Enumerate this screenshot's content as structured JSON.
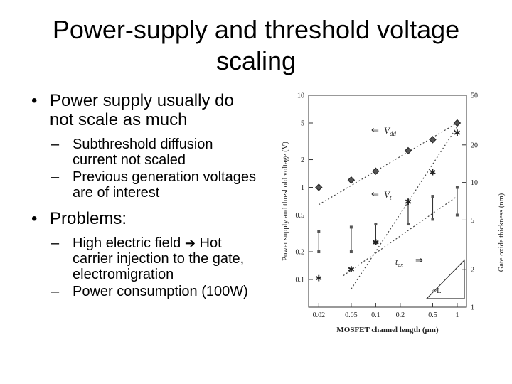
{
  "slide": {
    "title_line1": "Power-supply and threshold voltage",
    "title_line2": "scaling",
    "bullet1": "Power supply usually do not scale as much",
    "bullet1_sub": [
      "Subthreshold diffusion current not scaled",
      "Previous generation voltages are of interest"
    ],
    "bullet2": "Problems:",
    "bullet2_sub1_a": "High electric field",
    "bullet2_sub1_b": "Hot carrier injection to the gate, electromigration",
    "bullet2_sub2": "Power consumption (100W)",
    "bullet_glyph": "•",
    "dash_glyph": "–",
    "arrow_glyph": "➔"
  },
  "figure": {
    "left_axis_label": "Power supply and threshold voltage (V)",
    "right_axis_label": "Gate oxide thickness (nm)",
    "x_axis_label": "MOSFET channel length (μm)",
    "x_ticks": [
      "0.02",
      "0.05",
      "0.1",
      "0.2",
      "0.5",
      "1"
    ],
    "left_ticks": [
      "10",
      "5",
      "2",
      "1",
      "0.5",
      "0.2",
      "0.1"
    ],
    "right_ticks": [
      "50",
      "20",
      "10",
      "5",
      "2",
      "1"
    ],
    "annotations": {
      "vdd": "V",
      "vdd_sub": "dd",
      "vt": "V",
      "vt_sub": "t",
      "tox": "t",
      "tox_sub": "ox",
      "slope": "~L"
    }
  },
  "chart_data": {
    "type": "scatter",
    "x_scale": "log",
    "y_scale": "log",
    "xlabel": "MOSFET channel length (μm)",
    "ylabel": "Power supply and threshold voltage (V)",
    "y2label": "Gate oxide thickness (nm)",
    "xlim": [
      0.015,
      1.3
    ],
    "ylim": [
      0.05,
      10
    ],
    "y2lim": [
      1,
      50
    ],
    "series": [
      {
        "name": "Vdd",
        "x": [
          0.02,
          0.05,
          0.1,
          0.25,
          0.5,
          1
        ],
        "y": [
          1.0,
          1.2,
          1.5,
          2.5,
          3.3,
          5.0
        ]
      },
      {
        "name": "Vt",
        "x": [
          0.02,
          0.05,
          0.1,
          0.25,
          0.5,
          1
        ],
        "y": [
          0.27,
          0.28,
          0.33,
          0.5,
          0.6,
          0.7
        ],
        "y_low": [
          0.2,
          0.2,
          0.25,
          0.4,
          0.45,
          0.5
        ],
        "y_high": [
          0.33,
          0.37,
          0.4,
          0.7,
          0.8,
          1.0
        ]
      },
      {
        "name": "tox",
        "axis": "right",
        "x": [
          0.02,
          0.05,
          0.1,
          0.25,
          0.5,
          1
        ],
        "y": [
          1.7,
          2.0,
          3.3,
          7.0,
          12.0,
          25.0
        ]
      }
    ],
    "fit_lines": [
      {
        "series": "Vdd",
        "x": [
          0.02,
          1
        ],
        "y": [
          0.65,
          5.0
        ]
      },
      {
        "series": "Vt",
        "x": [
          0.04,
          1
        ],
        "y": [
          0.11,
          0.8
        ]
      },
      {
        "series": "tox",
        "axis": "right",
        "x": [
          0.05,
          1
        ],
        "y": [
          1.4,
          28
        ]
      }
    ]
  }
}
